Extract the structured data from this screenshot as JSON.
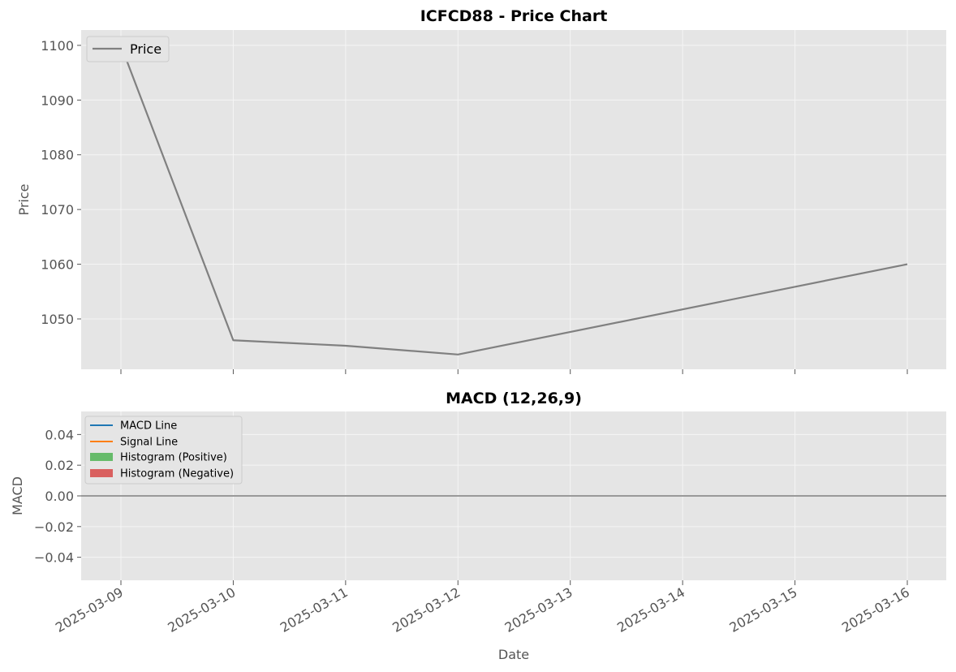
{
  "chart_data": [
    {
      "type": "line",
      "title": "ICFCD88 - Price Chart",
      "xlabel": "",
      "ylabel": "Price",
      "x": [
        "2025-03-09",
        "2025-03-10",
        "2025-03-11",
        "2025-03-12",
        "2025-03-13",
        "2025-03-14",
        "2025-03-15",
        "2025-03-16"
      ],
      "series": [
        {
          "name": "Price",
          "color": "#808080",
          "points": [
            {
              "x": "2025-03-09",
              "y": 1100.0
            },
            {
              "x": "2025-03-10",
              "y": 1046.1
            },
            {
              "x": "2025-03-11",
              "y": 1045.1
            },
            {
              "x": "2025-03-12",
              "y": 1043.5
            },
            {
              "x": "2025-03-16",
              "y": 1060.0
            }
          ]
        }
      ],
      "yticks": [
        1050,
        1060,
        1070,
        1080,
        1090,
        1100
      ],
      "ytick_labels": [
        "1050",
        "1060",
        "1070",
        "1080",
        "1090",
        "1100"
      ],
      "ylim": [
        1040.8,
        1102.8
      ],
      "grid": true,
      "legend": "upper left"
    },
    {
      "type": "line",
      "title": "MACD (12,26,9)",
      "xlabel": "Date",
      "ylabel": "MACD",
      "x": [
        "2025-03-09",
        "2025-03-10",
        "2025-03-11",
        "2025-03-12",
        "2025-03-13",
        "2025-03-14",
        "2025-03-15",
        "2025-03-16"
      ],
      "xtick_labels": [
        "2025-03-09",
        "2025-03-10",
        "2025-03-11",
        "2025-03-12",
        "2025-03-13",
        "2025-03-14",
        "2025-03-15",
        "2025-03-16"
      ],
      "series": [
        {
          "name": "MACD Line",
          "color": "#1f77b4"
        },
        {
          "name": "Signal Line",
          "color": "#ff7f0e"
        },
        {
          "name": "Histogram (Positive)",
          "color": "#66bb6a"
        },
        {
          "name": "Histogram (Negative)",
          "color": "#d9605f"
        }
      ],
      "zero_line": {
        "y": 0,
        "color": "#999999"
      },
      "yticks": [
        -0.04,
        -0.02,
        0.0,
        0.02,
        0.04
      ],
      "ytick_labels": [
        "−0.04",
        "−0.02",
        "0.00",
        "0.02",
        "0.04"
      ],
      "ylim": [
        -0.055,
        0.055
      ],
      "grid": true,
      "legend": "upper left"
    }
  ],
  "colors": {
    "axes_background": "#e5e5e5",
    "grid": "#f5f5f5"
  }
}
